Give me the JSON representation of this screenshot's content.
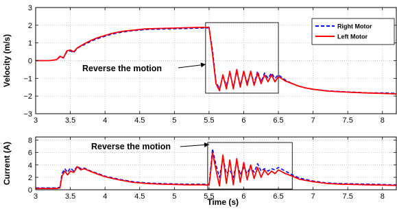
{
  "chart_data": [
    {
      "type": "line",
      "xlabel": "",
      "ylabel": "Velocity (m/s)",
      "xlim": [
        3,
        8.2
      ],
      "ylim": [
        -3,
        3
      ],
      "xticks": [
        "3",
        "3.5",
        "4",
        "4.5",
        "5",
        "5.5",
        "6",
        "6.5",
        "7",
        "7.5",
        "8"
      ],
      "yticks": [
        "3",
        "2",
        "1",
        "0",
        "−1",
        "−2",
        "−3"
      ],
      "grid": true,
      "legend": "top-right",
      "annotation": "Reverse the motion",
      "highlight_box_x": [
        5.45,
        6.5
      ],
      "series": [
        {
          "name": "Right Motor",
          "color": "#0000ff",
          "style": "dashed",
          "x": [
            3.0,
            3.2,
            3.3,
            3.35,
            3.4,
            3.45,
            3.5,
            3.55,
            3.6,
            3.7,
            3.8,
            3.9,
            4.0,
            4.1,
            4.2,
            4.3,
            4.4,
            4.5,
            4.6,
            4.8,
            5.0,
            5.2,
            5.4,
            5.5,
            5.55,
            5.6,
            5.65,
            5.7,
            5.75,
            5.8,
            5.85,
            5.9,
            5.95,
            6.0,
            6.05,
            6.1,
            6.15,
            6.2,
            6.25,
            6.3,
            6.35,
            6.4,
            6.45,
            6.5,
            6.6,
            6.7,
            6.8,
            6.9,
            7.0,
            7.2,
            7.4,
            7.6,
            7.8,
            8.0,
            8.2
          ],
          "y": [
            0.0,
            0.0,
            0.05,
            0.2,
            0.15,
            0.5,
            0.55,
            0.45,
            0.7,
            0.9,
            1.1,
            1.25,
            1.38,
            1.5,
            1.58,
            1.64,
            1.69,
            1.72,
            1.76,
            1.78,
            1.8,
            1.82,
            1.84,
            1.85,
            0.6,
            -1.2,
            -1.6,
            -0.9,
            -1.4,
            -0.7,
            -1.5,
            -0.6,
            -1.4,
            -0.6,
            -1.3,
            -0.6,
            -1.3,
            -0.6,
            -1.2,
            -0.7,
            -1.0,
            -0.7,
            -1.0,
            -0.8,
            -1.1,
            -1.3,
            -1.45,
            -1.55,
            -1.62,
            -1.7,
            -1.75,
            -1.78,
            -1.82,
            -1.82,
            -1.85
          ]
        },
        {
          "name": "Left Motor",
          "color": "#ff0000",
          "style": "solid",
          "x": [
            3.0,
            3.2,
            3.3,
            3.35,
            3.4,
            3.45,
            3.5,
            3.55,
            3.6,
            3.7,
            3.8,
            3.9,
            4.0,
            4.1,
            4.2,
            4.3,
            4.4,
            4.5,
            4.6,
            4.8,
            5.0,
            5.2,
            5.4,
            5.5,
            5.55,
            5.6,
            5.65,
            5.7,
            5.75,
            5.8,
            5.85,
            5.9,
            5.95,
            6.0,
            6.05,
            6.1,
            6.15,
            6.2,
            6.25,
            6.3,
            6.35,
            6.4,
            6.45,
            6.5,
            6.6,
            6.7,
            6.8,
            6.9,
            7.0,
            7.2,
            7.4,
            7.6,
            7.8,
            8.0,
            8.2
          ],
          "y": [
            0.0,
            0.0,
            0.05,
            0.25,
            0.15,
            0.55,
            0.6,
            0.5,
            0.72,
            0.95,
            1.15,
            1.3,
            1.42,
            1.54,
            1.62,
            1.68,
            1.72,
            1.76,
            1.8,
            1.82,
            1.84,
            1.86,
            1.88,
            1.88,
            0.4,
            -1.3,
            -1.7,
            -0.8,
            -1.6,
            -0.6,
            -1.6,
            -0.5,
            -1.5,
            -0.6,
            -1.4,
            -0.6,
            -1.4,
            -0.7,
            -1.3,
            -0.8,
            -1.2,
            -0.8,
            -1.2,
            -0.9,
            -1.15,
            -1.3,
            -1.45,
            -1.55,
            -1.62,
            -1.72,
            -1.76,
            -1.8,
            -1.83,
            -1.85,
            -1.88
          ]
        }
      ]
    },
    {
      "type": "line",
      "xlabel": "Time (s)",
      "ylabel": "Current (A)",
      "xlim": [
        3,
        8.2
      ],
      "ylim": [
        0,
        8.5
      ],
      "xticks": [
        "3",
        "3.5",
        "4",
        "4.5",
        "5",
        "5.5",
        "6",
        "6.5",
        "7",
        "7.5",
        "8"
      ],
      "yticks": [
        "8",
        "6",
        "4",
        "2",
        "0"
      ],
      "grid": true,
      "annotation": "Reverse the motion",
      "highlight_box_x": [
        5.48,
        6.7
      ],
      "series": [
        {
          "name": "Right Motor",
          "color": "#0000ff",
          "style": "dashed",
          "x": [
            3.0,
            3.3,
            3.35,
            3.38,
            3.42,
            3.46,
            3.5,
            3.55,
            3.6,
            3.65,
            3.7,
            3.8,
            3.9,
            4.0,
            4.2,
            4.4,
            4.6,
            4.8,
            5.0,
            5.2,
            5.4,
            5.5,
            5.52,
            5.55,
            5.6,
            5.65,
            5.7,
            5.75,
            5.8,
            5.85,
            5.9,
            5.95,
            6.0,
            6.05,
            6.1,
            6.15,
            6.2,
            6.25,
            6.3,
            6.35,
            6.4,
            6.45,
            6.5,
            6.6,
            6.7,
            6.8,
            7.0,
            7.2,
            7.4,
            7.6,
            7.8,
            8.0,
            8.2
          ],
          "y": [
            0.3,
            0.3,
            0.4,
            2.6,
            3.4,
            2.8,
            3.5,
            3.0,
            3.8,
            3.4,
            3.5,
            3.0,
            2.6,
            2.2,
            1.7,
            1.3,
            1.1,
            1.0,
            0.95,
            0.9,
            0.9,
            0.85,
            3.0,
            6.6,
            4.0,
            2.0,
            5.2,
            2.6,
            3.2,
            2.0,
            4.6,
            2.4,
            3.6,
            2.6,
            3.8,
            2.8,
            4.2,
            3.0,
            3.4,
            3.0,
            3.4,
            3.2,
            3.6,
            3.0,
            2.4,
            1.9,
            1.4,
            1.1,
            1.0,
            0.95,
            0.9,
            0.85,
            0.8
          ]
        },
        {
          "name": "Left Motor",
          "color": "#ff0000",
          "style": "solid",
          "x": [
            3.0,
            3.3,
            3.35,
            3.38,
            3.42,
            3.46,
            3.5,
            3.55,
            3.6,
            3.65,
            3.7,
            3.8,
            3.9,
            4.0,
            4.2,
            4.4,
            4.6,
            4.8,
            5.0,
            5.2,
            5.4,
            5.5,
            5.52,
            5.55,
            5.6,
            5.65,
            5.7,
            5.75,
            5.8,
            5.85,
            5.9,
            5.95,
            6.0,
            6.05,
            6.1,
            6.15,
            6.2,
            6.25,
            6.3,
            6.35,
            6.4,
            6.45,
            6.5,
            6.6,
            6.7,
            6.8,
            7.0,
            7.2,
            7.4,
            7.6,
            7.8,
            8.0,
            8.2
          ],
          "y": [
            0.2,
            0.2,
            0.3,
            2.2,
            3.0,
            2.4,
            3.0,
            2.8,
            3.7,
            3.2,
            3.4,
            2.9,
            2.5,
            2.1,
            1.6,
            1.2,
            1.0,
            0.9,
            0.85,
            0.8,
            0.8,
            0.75,
            2.5,
            6.0,
            3.2,
            0.6,
            5.6,
            1.0,
            4.8,
            0.8,
            5.0,
            1.2,
            4.4,
            1.6,
            4.0,
            1.8,
            3.6,
            2.0,
            3.2,
            2.4,
            3.0,
            2.6,
            3.2,
            2.6,
            2.2,
            1.7,
            1.3,
            1.0,
            0.9,
            0.85,
            0.8,
            0.75,
            0.7
          ]
        }
      ]
    }
  ]
}
